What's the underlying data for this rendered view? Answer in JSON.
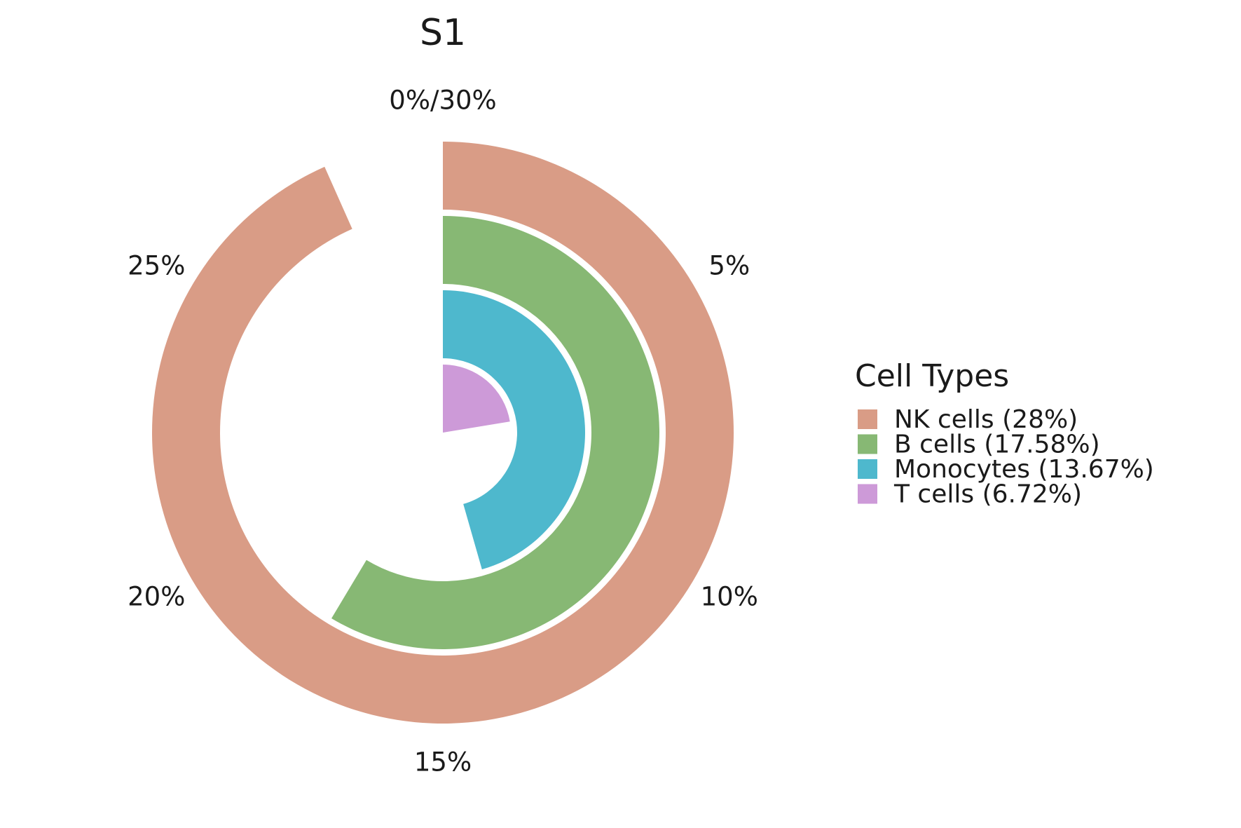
{
  "chart_data": {
    "type": "radial-bar",
    "title": "S1",
    "max_value": 30,
    "axis_ticks": [
      {
        "value": 0,
        "label": "0%/30%"
      },
      {
        "value": 5,
        "label": "5%"
      },
      {
        "value": 10,
        "label": "10%"
      },
      {
        "value": 15,
        "label": "15%"
      },
      {
        "value": 20,
        "label": "20%"
      },
      {
        "value": 25,
        "label": "25%"
      }
    ],
    "legend_title": "Cell Types",
    "legend_placement": "right",
    "series": [
      {
        "name": "NK cells",
        "value": 28,
        "label": "NK cells (28%)",
        "color": "#D99C86"
      },
      {
        "name": "B cells",
        "value": 17.58,
        "label": "B cells (17.58%)",
        "color": "#87B874"
      },
      {
        "name": "Monocytes",
        "value": 13.67,
        "label": "Monocytes (13.67%)",
        "color": "#4EB8CD"
      },
      {
        "name": "T cells",
        "value": 6.72,
        "label": "T cells (6.72%)",
        "color": "#CD9AD8"
      }
    ]
  }
}
